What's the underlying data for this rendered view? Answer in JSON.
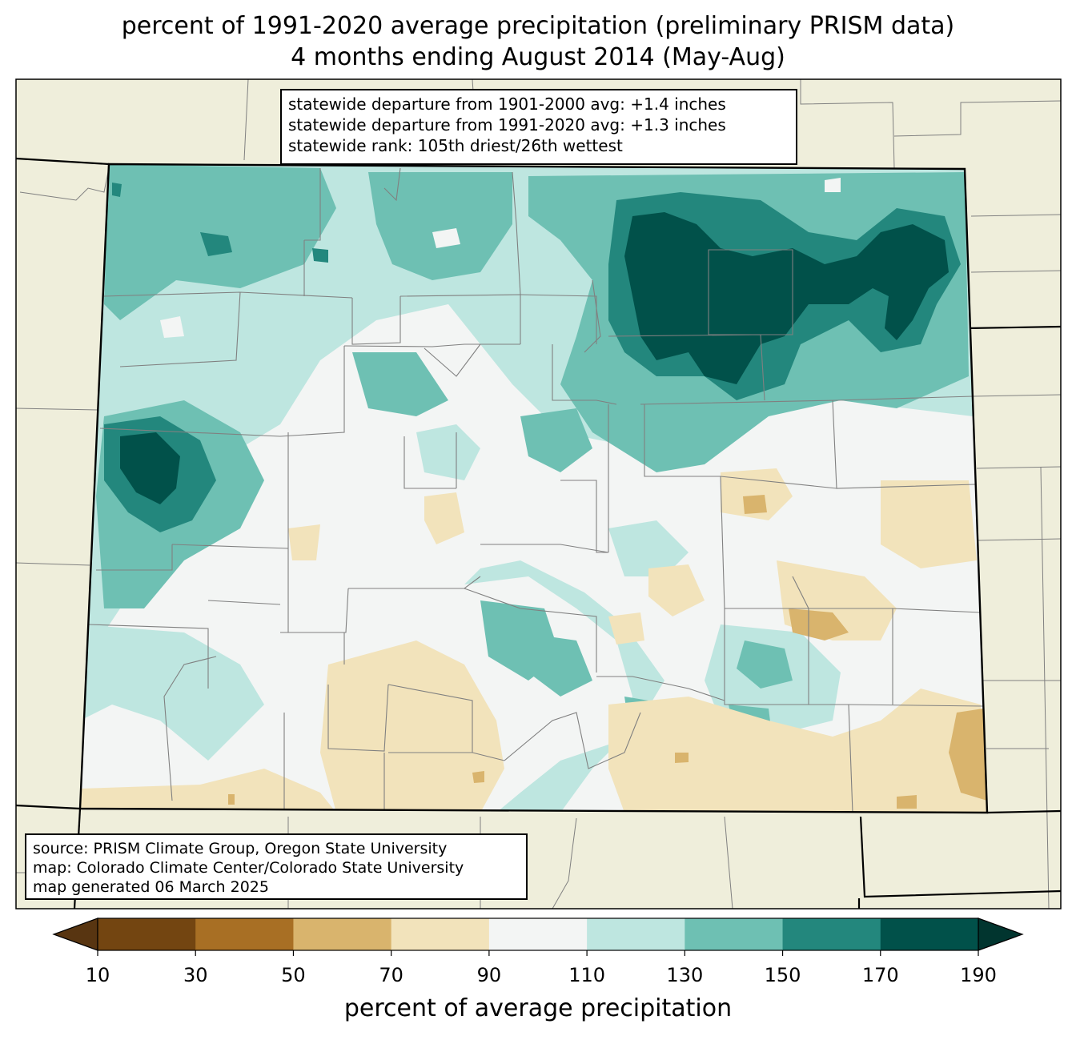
{
  "title_line1": "percent of 1991-2020 average precipitation (preliminary PRISM data)",
  "title_line2": "4 months ending August 2014 (May-Aug)",
  "stats": {
    "line1": "statewide departure from 1901-2000 avg: +1.4 inches",
    "line2": "statewide departure from 1991-2020 avg: +1.3 inches",
    "line3": "statewide rank: 105th driest/26th wettest"
  },
  "source": {
    "line1": "source: PRISM Climate Group, Oregon State University",
    "line2": "map: Colorado Climate Center/Colorado State University",
    "line3": "map generated 06 March 2025"
  },
  "colorbar": {
    "label": "percent of average precipitation",
    "ticks": [
      "10",
      "30",
      "50",
      "70",
      "90",
      "110",
      "130",
      "150",
      "170",
      "190"
    ],
    "colors": [
      "#734511",
      "#a86f24",
      "#d9b46d",
      "#f2e3bb",
      "#f3f5f4",
      "#bee6e0",
      "#6ec0b3",
      "#23877d",
      "#01514a"
    ],
    "under_color": "#583511",
    "over_color": "#01352f"
  },
  "colors": {
    "land_outside": "#efeedb",
    "state_border": "#000000",
    "county_border": "#808080"
  }
}
